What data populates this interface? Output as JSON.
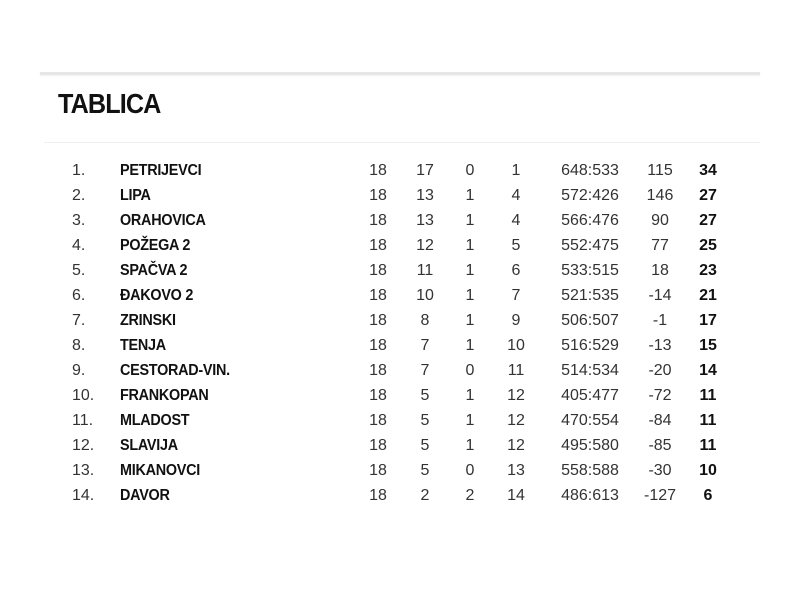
{
  "title": "TABLICA",
  "rows": [
    {
      "rank": "1.",
      "team": "PETRIJEVCI",
      "played": "18",
      "won": "17",
      "drawn": "0",
      "lost": "1",
      "score": "648:533",
      "diff": "115",
      "points": "34"
    },
    {
      "rank": "2.",
      "team": "LIPA",
      "played": "18",
      "won": "13",
      "drawn": "1",
      "lost": "4",
      "score": "572:426",
      "diff": "146",
      "points": "27"
    },
    {
      "rank": "3.",
      "team": "ORAHOVICA",
      "played": "18",
      "won": "13",
      "drawn": "1",
      "lost": "4",
      "score": "566:476",
      "diff": "90",
      "points": "27"
    },
    {
      "rank": "4.",
      "team": "POŽEGA 2",
      "played": "18",
      "won": "12",
      "drawn": "1",
      "lost": "5",
      "score": "552:475",
      "diff": "77",
      "points": "25"
    },
    {
      "rank": "5.",
      "team": "SPAČVA 2",
      "played": "18",
      "won": "11",
      "drawn": "1",
      "lost": "6",
      "score": "533:515",
      "diff": "18",
      "points": "23"
    },
    {
      "rank": "6.",
      "team": "ĐAKOVO 2",
      "played": "18",
      "won": "10",
      "drawn": "1",
      "lost": "7",
      "score": "521:535",
      "diff": "-14",
      "points": "21"
    },
    {
      "rank": "7.",
      "team": "ZRINSKI",
      "played": "18",
      "won": "8",
      "drawn": "1",
      "lost": "9",
      "score": "506:507",
      "diff": "-1",
      "points": "17"
    },
    {
      "rank": "8.",
      "team": "TENJA",
      "played": "18",
      "won": "7",
      "drawn": "1",
      "lost": "10",
      "score": "516:529",
      "diff": "-13",
      "points": "15"
    },
    {
      "rank": "9.",
      "team": "CESTORAD-VIN.",
      "played": "18",
      "won": "7",
      "drawn": "0",
      "lost": "11",
      "score": "514:534",
      "diff": "-20",
      "points": "14"
    },
    {
      "rank": "10.",
      "team": "FRANKOPAN",
      "played": "18",
      "won": "5",
      "drawn": "1",
      "lost": "12",
      "score": "405:477",
      "diff": "-72",
      "points": "11"
    },
    {
      "rank": "11.",
      "team": "MLADOST",
      "played": "18",
      "won": "5",
      "drawn": "1",
      "lost": "12",
      "score": "470:554",
      "diff": "-84",
      "points": "11"
    },
    {
      "rank": "12.",
      "team": "SLAVIJA",
      "played": "18",
      "won": "5",
      "drawn": "1",
      "lost": "12",
      "score": "495:580",
      "diff": "-85",
      "points": "11"
    },
    {
      "rank": "13.",
      "team": "MIKANOVCI",
      "played": "18",
      "won": "5",
      "drawn": "0",
      "lost": "13",
      "score": "558:588",
      "diff": "-30",
      "points": "10"
    },
    {
      "rank": "14.",
      "team": "DAVOR",
      "played": "18",
      "won": "2",
      "drawn": "2",
      "lost": "14",
      "score": "486:613",
      "diff": "-127",
      "points": "6"
    }
  ]
}
